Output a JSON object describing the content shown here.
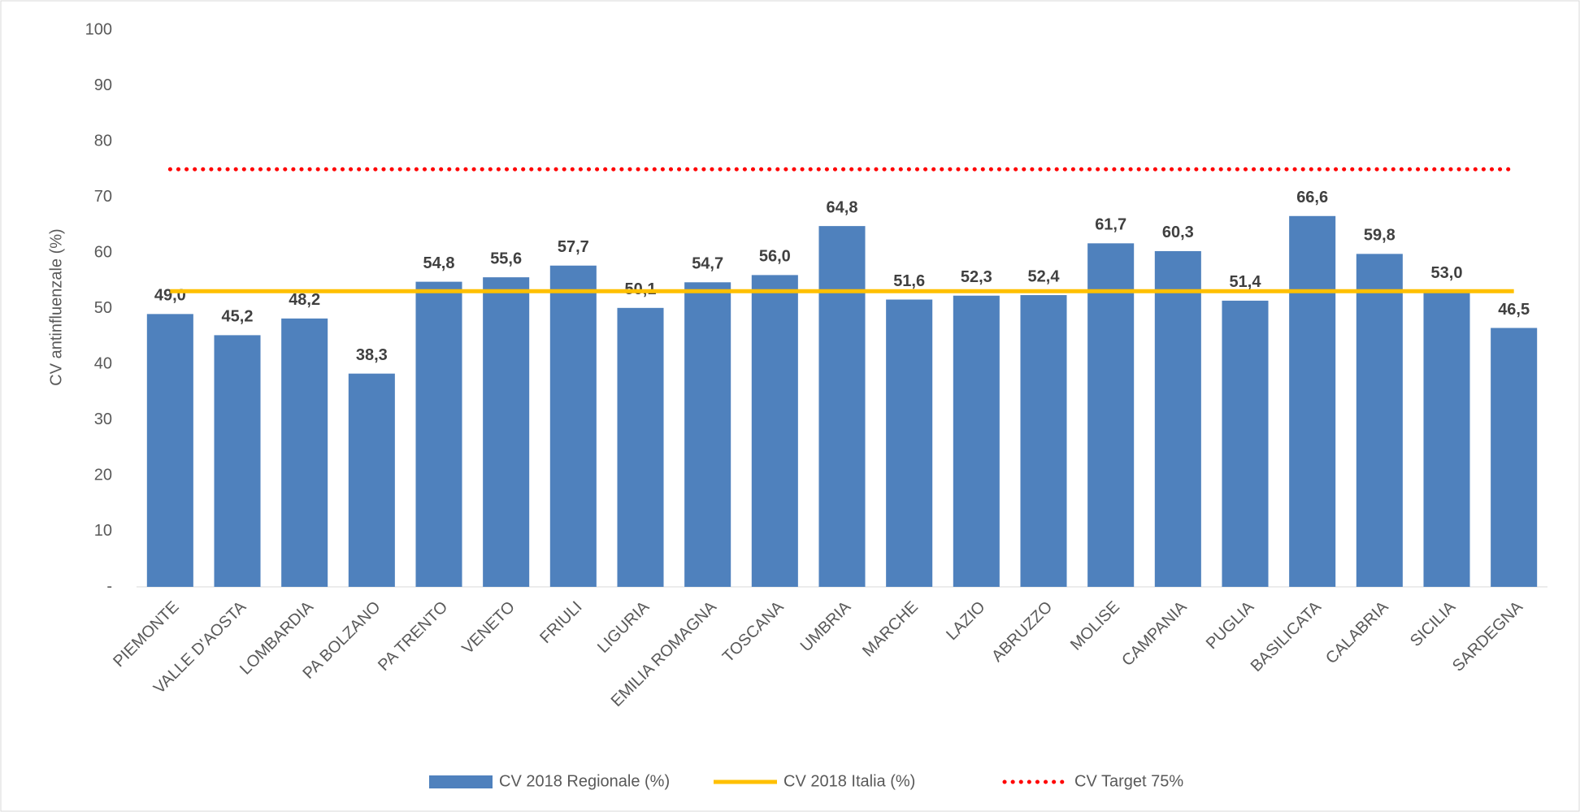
{
  "chart_data": {
    "type": "bar",
    "ylabel": "CV antinfluenzale (%)",
    "categories": [
      "PIEMONTE",
      "VALLE D'AOSTA",
      "LOMBARDIA",
      "PA BOLZANO",
      "PA TRENTO",
      "VENETO",
      "FRIULI",
      "LIGURIA",
      "EMILIA ROMAGNA",
      "TOSCANA",
      "UMBRIA",
      "MARCHE",
      "LAZIO",
      "ABRUZZO",
      "MOLISE",
      "CAMPANIA",
      "PUGLIA",
      "BASILICATA",
      "CALABRIA",
      "SICILIA",
      "SARDEGNA"
    ],
    "series": [
      {
        "name": "CV 2018 Regionale (%)",
        "color": "#4f81bd",
        "type": "bar",
        "values": [
          49.0,
          45.2,
          48.2,
          38.3,
          54.8,
          55.6,
          57.7,
          50.1,
          54.7,
          56.0,
          64.8,
          51.6,
          52.3,
          52.4,
          61.7,
          60.3,
          51.4,
          66.6,
          59.8,
          53.0,
          46.5
        ],
        "value_labels": [
          "49,0",
          "45,2",
          "48,2",
          "38,3",
          "54,8",
          "55,6",
          "57,7",
          "50,1",
          "54,7",
          "56,0",
          "64,8",
          "51,6",
          "52,3",
          "52,4",
          "61,7",
          "60,3",
          "51,4",
          "66,6",
          "59,8",
          "53,0",
          "46,5"
        ]
      },
      {
        "name": "CV 2018 Italia (%)",
        "color": "#ffc000",
        "type": "line",
        "style": "solid",
        "values": [
          53.1,
          53.1,
          53.1,
          53.1,
          53.1,
          53.1,
          53.1,
          53.1,
          53.1,
          53.1,
          53.1,
          53.1,
          53.1,
          53.1,
          53.1,
          53.1,
          53.1,
          53.1,
          53.1,
          53.1,
          53.1
        ]
      },
      {
        "name": "CV Target 75%",
        "color": "#ff0000",
        "type": "line",
        "style": "dotted",
        "values": [
          75,
          75,
          75,
          75,
          75,
          75,
          75,
          75,
          75,
          75,
          75,
          75,
          75,
          75,
          75,
          75,
          75,
          75,
          75,
          75,
          75
        ]
      }
    ],
    "ylim": [
      0,
      100
    ],
    "yticks": [
      {
        "value": 0,
        "label": "-"
      },
      10,
      20,
      30,
      40,
      50,
      60,
      70,
      80,
      90,
      100
    ],
    "grid": false,
    "legend": "bottom"
  }
}
